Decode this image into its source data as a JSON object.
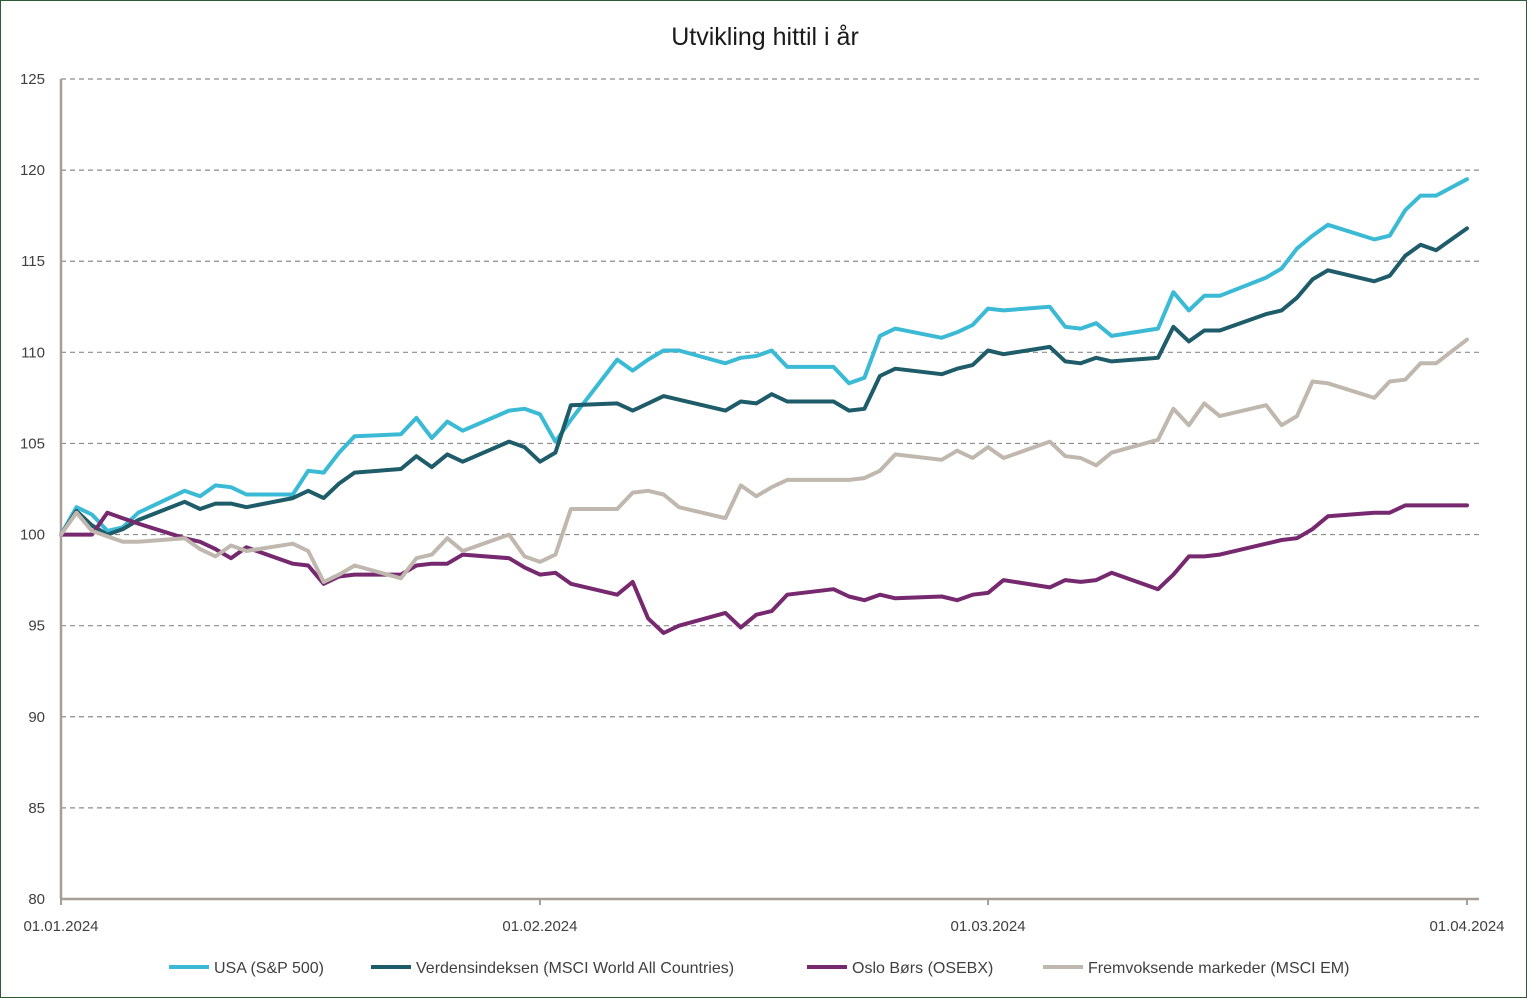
{
  "chart_data": {
    "type": "line",
    "title": "Utvikling hittil i år",
    "xlabel": "",
    "ylabel": "",
    "ylim": [
      80,
      125
    ],
    "yticks": [
      80,
      85,
      90,
      95,
      100,
      105,
      110,
      115,
      120,
      125
    ],
    "xticks": [
      "01.01.2024",
      "01.02.2024",
      "01.03.2024",
      "01.04.2024"
    ],
    "xrange_days": [
      0,
      91
    ],
    "grid": "horizontal dashed",
    "legend_position": "bottom",
    "series": [
      {
        "name": "USA (S&P 500)",
        "color": "#3bbad6",
        "x": [
          0,
          1,
          2,
          3,
          4,
          5,
          8,
          9,
          10,
          11,
          12,
          15,
          16,
          17,
          18,
          19,
          22,
          23,
          24,
          25,
          26,
          29,
          30,
          31,
          32,
          33,
          36,
          37,
          38,
          39,
          40,
          43,
          44,
          45,
          46,
          47,
          50,
          51,
          52,
          53,
          54,
          57,
          58,
          59,
          60,
          61,
          64,
          65,
          66,
          67,
          68,
          71,
          72,
          73,
          74,
          75,
          78,
          79,
          80,
          81,
          82,
          85,
          86,
          87,
          88,
          89,
          91
        ],
        "values": [
          100,
          101.5,
          101.1,
          100.2,
          100.4,
          101.2,
          102.4,
          102.1,
          102.7,
          102.6,
          102.2,
          102.2,
          103.5,
          103.4,
          104.5,
          105.4,
          105.5,
          106.4,
          105.3,
          106.2,
          105.7,
          106.8,
          106.9,
          106.6,
          105.1,
          106.3,
          109.6,
          109.0,
          109.6,
          110.1,
          110.1,
          109.4,
          109.7,
          109.8,
          110.1,
          109.2,
          109.2,
          108.3,
          108.6,
          110.9,
          111.3,
          110.8,
          111.1,
          111.5,
          112.4,
          112.3,
          112.5,
          111.4,
          111.3,
          111.6,
          110.9,
          111.3,
          113.3,
          112.3,
          113.1,
          113.1,
          114.1,
          114.6,
          115.7,
          116.4,
          117.0,
          116.2,
          116.4,
          117.8,
          118.6,
          118.6,
          119.5
        ]
      },
      {
        "name": "Verdensindeksen (MSCI World All Countries)",
        "color": "#1f5c6a",
        "x": [
          0,
          1,
          2,
          3,
          4,
          5,
          8,
          9,
          10,
          11,
          12,
          15,
          16,
          17,
          18,
          19,
          22,
          23,
          24,
          25,
          26,
          29,
          30,
          31,
          32,
          33,
          36,
          37,
          38,
          39,
          40,
          43,
          44,
          45,
          46,
          47,
          50,
          51,
          52,
          53,
          54,
          57,
          58,
          59,
          60,
          61,
          64,
          65,
          66,
          67,
          68,
          71,
          72,
          73,
          74,
          75,
          78,
          79,
          80,
          81,
          82,
          85,
          86,
          87,
          88,
          89,
          91
        ],
        "values": [
          100,
          101.3,
          100.5,
          100.0,
          100.3,
          100.8,
          101.8,
          101.4,
          101.7,
          101.7,
          101.5,
          102.0,
          102.4,
          102.0,
          102.8,
          103.4,
          103.6,
          104.3,
          103.7,
          104.4,
          104.0,
          105.1,
          104.8,
          104.0,
          104.5,
          107.1,
          107.2,
          106.8,
          107.2,
          107.6,
          107.4,
          106.8,
          107.3,
          107.2,
          107.7,
          107.3,
          107.3,
          106.8,
          106.9,
          108.7,
          109.1,
          108.8,
          109.1,
          109.3,
          110.1,
          109.9,
          110.3,
          109.5,
          109.4,
          109.7,
          109.5,
          109.7,
          111.4,
          110.6,
          111.2,
          111.2,
          112.1,
          112.3,
          113.0,
          114.0,
          114.5,
          113.9,
          114.2,
          115.3,
          115.9,
          115.6,
          116.8
        ]
      },
      {
        "name": "Oslo Børs (OSEBX)",
        "color": "#76296e",
        "x": [
          0,
          1,
          2,
          3,
          4,
          5,
          8,
          9,
          10,
          11,
          12,
          15,
          16,
          17,
          18,
          19,
          22,
          23,
          24,
          25,
          26,
          29,
          30,
          31,
          32,
          33,
          36,
          37,
          38,
          39,
          40,
          43,
          44,
          45,
          46,
          47,
          50,
          51,
          52,
          53,
          54,
          57,
          58,
          59,
          60,
          61,
          64,
          65,
          66,
          67,
          68,
          71,
          72,
          73,
          74,
          75,
          78,
          79,
          80,
          81,
          82,
          85,
          86,
          87,
          88,
          89,
          91
        ],
        "values": [
          100,
          100,
          100,
          101.2,
          100.9,
          100.6,
          99.8,
          99.6,
          99.2,
          98.7,
          99.3,
          98.4,
          98.3,
          97.3,
          97.7,
          97.8,
          97.8,
          98.3,
          98.4,
          98.4,
          98.9,
          98.7,
          98.2,
          97.8,
          97.9,
          97.3,
          96.7,
          97.4,
          95.4,
          94.6,
          95.0,
          95.7,
          94.9,
          95.6,
          95.8,
          96.7,
          97.0,
          96.6,
          96.4,
          96.7,
          96.5,
          96.6,
          96.4,
          96.7,
          96.8,
          97.5,
          97.1,
          97.5,
          97.4,
          97.5,
          97.9,
          97.0,
          97.8,
          98.8,
          98.8,
          98.9,
          99.5,
          99.7,
          99.8,
          100.3,
          101.0,
          101.2,
          101.2,
          101.6,
          101.6,
          101.6,
          101.6
        ]
      },
      {
        "name": "Fremvoksende markeder (MSCI EM)",
        "color": "#c0b8ae",
        "x": [
          0,
          1,
          2,
          3,
          4,
          5,
          8,
          9,
          10,
          11,
          12,
          15,
          16,
          17,
          18,
          19,
          22,
          23,
          24,
          25,
          26,
          29,
          30,
          31,
          32,
          33,
          36,
          37,
          38,
          39,
          40,
          43,
          44,
          45,
          46,
          47,
          50,
          51,
          52,
          53,
          54,
          57,
          58,
          59,
          60,
          61,
          64,
          65,
          66,
          67,
          68,
          71,
          72,
          73,
          74,
          75,
          78,
          79,
          80,
          81,
          82,
          85,
          86,
          87,
          88,
          89,
          91
        ],
        "values": [
          100,
          101.2,
          100.2,
          99.9,
          99.6,
          99.6,
          99.8,
          99.2,
          98.8,
          99.4,
          99.1,
          99.5,
          99.1,
          97.4,
          97.8,
          98.3,
          97.6,
          98.7,
          98.9,
          99.8,
          99.1,
          100.0,
          98.8,
          98.5,
          98.9,
          101.4,
          101.4,
          102.3,
          102.4,
          102.2,
          101.5,
          100.9,
          102.7,
          102.1,
          102.6,
          103.0,
          103.0,
          103.0,
          103.1,
          103.5,
          104.4,
          104.1,
          104.6,
          104.2,
          104.8,
          104.2,
          105.1,
          104.3,
          104.2,
          103.8,
          104.5,
          105.2,
          106.9,
          106.0,
          107.2,
          106.5,
          107.1,
          106.0,
          106.5,
          108.4,
          108.3,
          107.5,
          108.4,
          108.5,
          109.4,
          109.4,
          110.7
        ]
      }
    ]
  }
}
